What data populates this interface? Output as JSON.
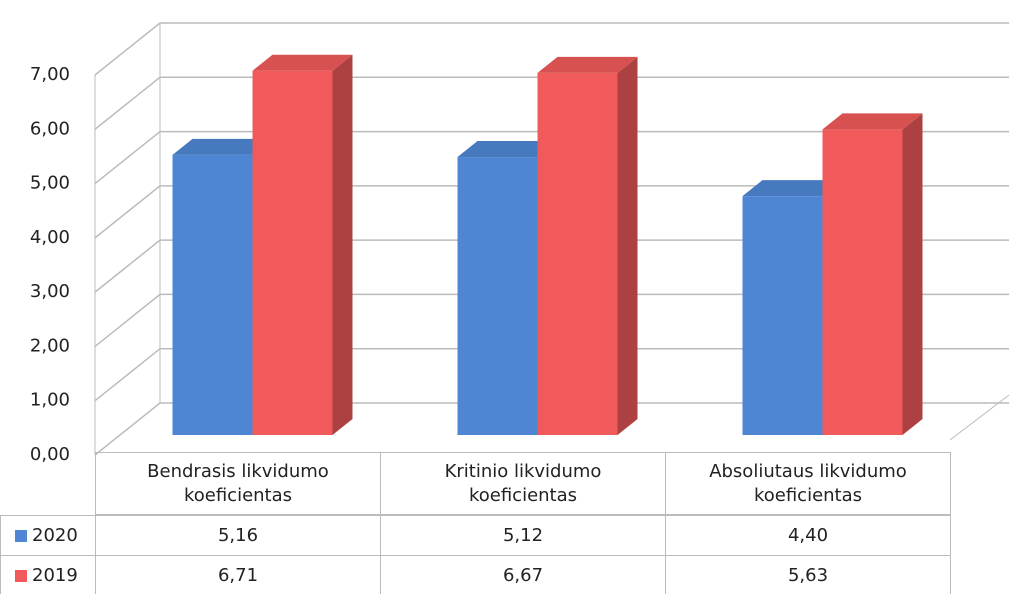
{
  "chart_data": {
    "type": "bar3d",
    "categories": [
      "Bendrasis likvidumo koeficientas",
      "Kritinio likvidumo koeficientas",
      "Absoliutaus likvidumo koeficientas"
    ],
    "series": [
      {
        "name": "2020",
        "color": "#4f86d4",
        "values": [
          5.16,
          5.12,
          4.4
        ],
        "value_labels": [
          "5,16",
          "5,12",
          "4,40"
        ]
      },
      {
        "name": "2019",
        "color": "#f05a5a",
        "values": [
          6.71,
          6.67,
          5.63
        ],
        "value_labels": [
          "6,71",
          "6,67",
          "5,63"
        ]
      }
    ],
    "ylim": [
      0,
      7
    ],
    "yticks": [
      {
        "value": 0,
        "label": "0,00"
      },
      {
        "value": 1,
        "label": "1,00"
      },
      {
        "value": 2,
        "label": "2,00"
      },
      {
        "value": 3,
        "label": "3,00"
      },
      {
        "value": 4,
        "label": "4,00"
      },
      {
        "value": 5,
        "label": "5,00"
      },
      {
        "value": 6,
        "label": "6,00"
      },
      {
        "value": 7,
        "label": "7,00"
      }
    ],
    "grid": true
  }
}
